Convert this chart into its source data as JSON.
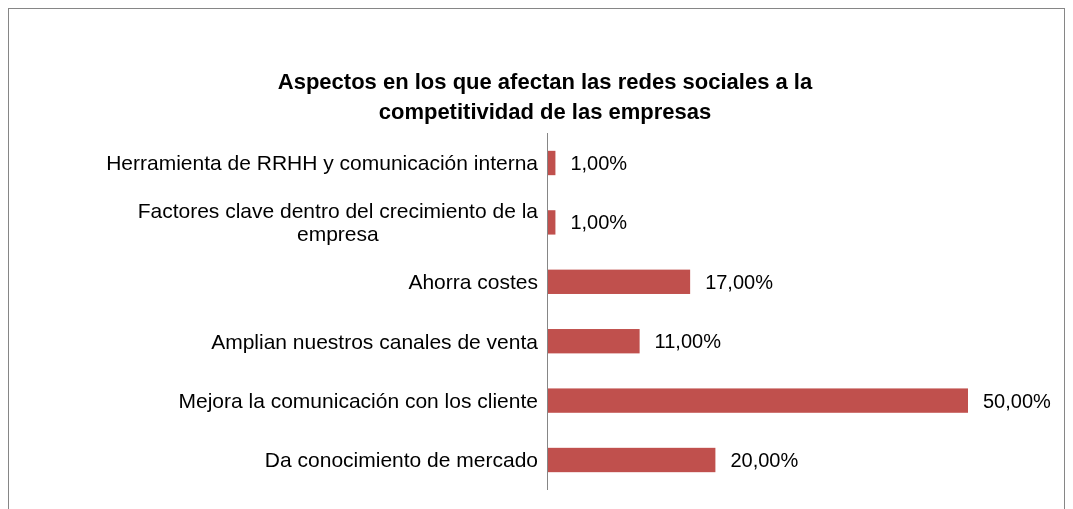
{
  "chart_data": {
    "type": "bar",
    "orientation": "horizontal",
    "title": "Aspectos en los que afectan las redes sociales a la competitividad de las empresas",
    "categories": [
      "Herramienta de RRHH y comunicación interna",
      "Factores clave dentro del crecimiento de la empresa",
      "Ahorra costes",
      "Amplian nuestros canales de venta",
      "Mejora la comunicación con los cliente",
      "Da conocimiento de mercado"
    ],
    "values": [
      1,
      1,
      17,
      11,
      50,
      20
    ],
    "value_labels": [
      "1,00%",
      "1,00%",
      "17,00%",
      "11,00%",
      "50,00%",
      "20,00%"
    ],
    "color": "#c0504d"
  }
}
